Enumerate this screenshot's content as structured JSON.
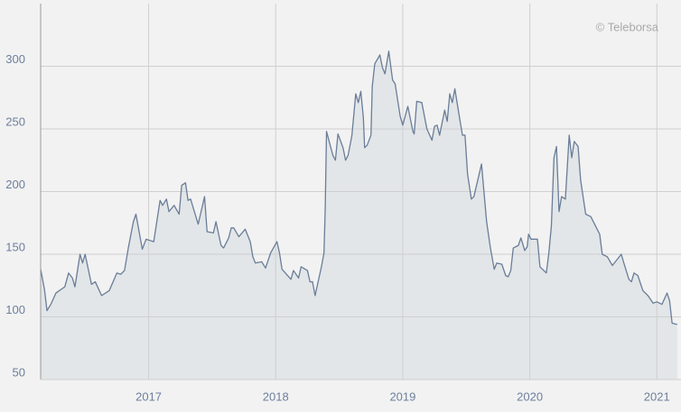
{
  "chart_data": {
    "type": "area",
    "annotation": "© Teleborsa",
    "x": [
      2016.15,
      2016.18,
      2016.2,
      2016.23,
      2016.27,
      2016.34,
      2016.37,
      2016.4,
      2016.42,
      2016.46,
      2016.48,
      2016.5,
      2016.55,
      2016.58,
      2016.63,
      2016.69,
      2016.75,
      2016.78,
      2016.81,
      2016.84,
      2016.88,
      2016.9,
      2016.95,
      2016.98,
      2017.04,
      2017.09,
      2017.11,
      2017.14,
      2017.16,
      2017.2,
      2017.24,
      2017.26,
      2017.29,
      2017.31,
      2017.33,
      2017.39,
      2017.44,
      2017.46,
      2017.51,
      2017.53,
      2017.57,
      2017.59,
      2017.63,
      2017.65,
      2017.67,
      2017.71,
      2017.76,
      2017.8,
      2017.82,
      2017.84,
      2017.89,
      2017.92,
      2017.96,
      2018.01,
      2018.03,
      2018.05,
      2018.12,
      2018.14,
      2018.18,
      2018.2,
      2018.25,
      2018.27,
      2018.29,
      2018.31,
      2018.36,
      2018.38,
      2018.39,
      2018.4,
      2018.45,
      2018.47,
      2018.49,
      2018.53,
      2018.55,
      2018.57,
      2018.6,
      2018.63,
      2018.65,
      2018.67,
      2018.69,
      2018.7,
      2018.72,
      2018.75,
      2018.76,
      2018.78,
      2018.82,
      2018.84,
      2018.86,
      2018.89,
      2018.92,
      2018.94,
      2018.98,
      2019.0,
      2019.04,
      2019.08,
      2019.09,
      2019.11,
      2019.15,
      2019.19,
      2019.23,
      2019.25,
      2019.27,
      2019.29,
      2019.33,
      2019.35,
      2019.37,
      2019.39,
      2019.41,
      2019.45,
      2019.47,
      2019.49,
      2019.51,
      2019.54,
      2019.56,
      2019.62,
      2019.66,
      2019.69,
      2019.72,
      2019.74,
      2019.78,
      2019.81,
      2019.83,
      2019.85,
      2019.87,
      2019.91,
      2019.93,
      2019.96,
      2019.98,
      2019.99,
      2020.01,
      2020.06,
      2020.08,
      2020.13,
      2020.15,
      2020.17,
      2020.19,
      2020.21,
      2020.23,
      2020.25,
      2020.28,
      2020.31,
      2020.33,
      2020.35,
      2020.38,
      2020.4,
      2020.44,
      2020.48,
      2020.53,
      2020.55,
      2020.57,
      2020.61,
      2020.65,
      2020.72,
      2020.74,
      2020.78,
      2020.8,
      2020.82,
      2020.85,
      2020.89,
      2020.93,
      2020.97,
      2021.0,
      2021.04,
      2021.08,
      2021.1,
      2021.12,
      2021.16
    ],
    "values": [
      138,
      122,
      105,
      110,
      119,
      124,
      135,
      131,
      124,
      150,
      143,
      150,
      126,
      128,
      117,
      121,
      135,
      134,
      137,
      155,
      176,
      182,
      154,
      162,
      160,
      193,
      189,
      194,
      184,
      189,
      182,
      205,
      207,
      193,
      194,
      174,
      196,
      168,
      167,
      176,
      157,
      155,
      163,
      171,
      171,
      164,
      170,
      160,
      148,
      143,
      144,
      139,
      151,
      160,
      151,
      138,
      130,
      137,
      131,
      140,
      137,
      128,
      128,
      117,
      140,
      151,
      187,
      248,
      229,
      225,
      246,
      235,
      225,
      229,
      245,
      278,
      271,
      280,
      259,
      235,
      237,
      245,
      284,
      302,
      309,
      299,
      294,
      312,
      289,
      286,
      260,
      253,
      268,
      248,
      246,
      272,
      271,
      250,
      241,
      252,
      253,
      245,
      265,
      256,
      278,
      271,
      282,
      257,
      245,
      245,
      214,
      194,
      196,
      222,
      176,
      155,
      138,
      143,
      142,
      133,
      132,
      137,
      155,
      157,
      163,
      153,
      156,
      166,
      162,
      162,
      140,
      135,
      151,
      173,
      227,
      236,
      184,
      196,
      194,
      245,
      227,
      240,
      236,
      209,
      182,
      180,
      170,
      166,
      150,
      148,
      141,
      150,
      143,
      130,
      128,
      135,
      133,
      121,
      117,
      111,
      112,
      110,
      119,
      113,
      95,
      94
    ],
    "color": "#6a7d99",
    "fill": "#e2e6e8",
    "xlim": [
      2016.15,
      2021.19
    ],
    "xticks": [
      2017,
      2018,
      2019,
      2020,
      2021
    ],
    "ylim": [
      50,
      350
    ],
    "yticks": [
      50,
      100,
      150,
      200,
      250,
      300
    ],
    "grid": true
  }
}
